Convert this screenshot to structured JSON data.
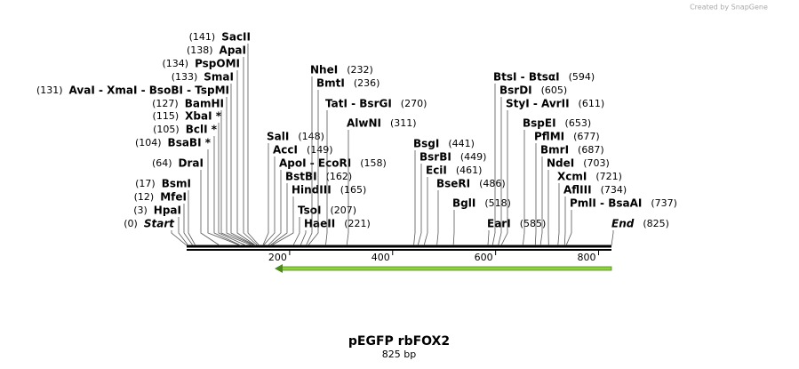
{
  "brand": "Created by SnapGene",
  "title": "pEGFP rbFOX2",
  "subtitle": "825 bp",
  "axis": {
    "range": [
      0,
      825
    ],
    "ticks": [
      200,
      400,
      600,
      800
    ]
  },
  "left_sites": [
    {
      "name": "SacII",
      "position": 141,
      "position_label": "(141)"
    },
    {
      "name": "ApaI",
      "position": 138,
      "position_label": "(138)"
    },
    {
      "name": "PspOMI",
      "position": 134,
      "position_label": "(134)"
    },
    {
      "name": "SmaI",
      "position": 133,
      "position_label": "(133)"
    },
    {
      "name": "AvaI  - XmaI  - BsoBI  - TspMI",
      "position": 131,
      "position_label": "(131)"
    },
    {
      "name": "BamHI",
      "position": 127,
      "position_label": "(127)"
    },
    {
      "name": "XbaI *",
      "position": 115,
      "position_label": "(115)"
    },
    {
      "name": "BclI *",
      "position": 105,
      "position_label": "(105)"
    },
    {
      "name": "BsaBI *",
      "position": 104,
      "position_label": "(104)"
    },
    {
      "name": "DraI",
      "position": 64,
      "position_label": "(64)"
    },
    {
      "name": "BsmI",
      "position": 17,
      "position_label": "(17)"
    },
    {
      "name": "MfeI",
      "position": 12,
      "position_label": "(12)"
    },
    {
      "name": "HpaI",
      "position": 3,
      "position_label": "(3)"
    },
    {
      "name": "Start",
      "position": 0,
      "position_label": "(0)"
    }
  ],
  "right_sites": [
    {
      "name": "SalI",
      "position": 148,
      "position_label": "(148)"
    },
    {
      "name": "AccI",
      "position": 149,
      "position_label": "(149)"
    },
    {
      "name": "ApoI  - EcoRI",
      "position": 158,
      "position_label": "(158)"
    },
    {
      "name": "BstBI",
      "position": 162,
      "position_label": "(162)"
    },
    {
      "name": "HindIII",
      "position": 165,
      "position_label": "(165)"
    },
    {
      "name": "TsoI",
      "position": 207,
      "position_label": "(207)"
    },
    {
      "name": "HaeII",
      "position": 221,
      "position_label": "(221)"
    },
    {
      "name": "NheI",
      "position": 232,
      "position_label": "(232)"
    },
    {
      "name": "BmtI",
      "position": 236,
      "position_label": "(236)"
    },
    {
      "name": "TatI  - BsrGI",
      "position": 270,
      "position_label": "(270)"
    },
    {
      "name": "AlwNI",
      "position": 311,
      "position_label": "(311)"
    },
    {
      "name": "BsgI",
      "position": 441,
      "position_label": "(441)"
    },
    {
      "name": "BsrBI",
      "position": 449,
      "position_label": "(449)"
    },
    {
      "name": "EciI",
      "position": 461,
      "position_label": "(461)"
    },
    {
      "name": "BseRI",
      "position": 486,
      "position_label": "(486)"
    },
    {
      "name": "BglI",
      "position": 518,
      "position_label": "(518)"
    },
    {
      "name": "EarI",
      "position": 585,
      "position_label": "(585)"
    },
    {
      "name": "BtsI  - BtsαI",
      "position": 594,
      "position_label": "(594)"
    },
    {
      "name": "BsrDI",
      "position": 605,
      "position_label": "(605)"
    },
    {
      "name": "StyI  - AvrII",
      "position": 611,
      "position_label": "(611)"
    },
    {
      "name": "BspEI",
      "position": 653,
      "position_label": "(653)"
    },
    {
      "name": "PflMI",
      "position": 677,
      "position_label": "(677)"
    },
    {
      "name": "BmrI",
      "position": 687,
      "position_label": "(687)"
    },
    {
      "name": "NdeI",
      "position": 703,
      "position_label": "(703)"
    },
    {
      "name": "XcmI",
      "position": 721,
      "position_label": "(721)"
    },
    {
      "name": "AflIII",
      "position": 734,
      "position_label": "(734)"
    },
    {
      "name": "PmlI  - BsaAI",
      "position": 737,
      "position_label": "(737)"
    },
    {
      "name": "End",
      "position": 825,
      "position_label": "(825)"
    }
  ]
}
